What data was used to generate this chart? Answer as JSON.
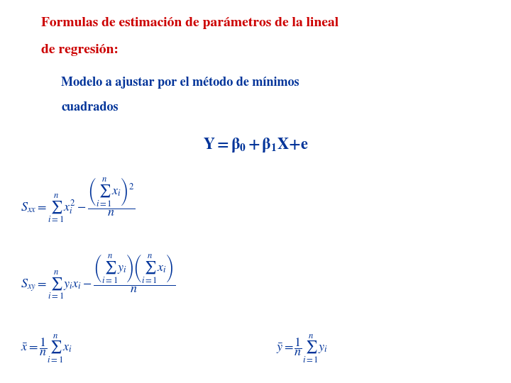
{
  "title_line1": "Formulas de estimación de parámetros de la lineal",
  "title_line2": "de regresión:",
  "subtitle_line1": "Modelo a ajustar por el método de mínimos",
  "subtitle_line2": "cuadrados",
  "title_color": "#cc0000",
  "subtitle_color": "#003399",
  "formula_color": "#003399",
  "bg_color": "#ffffff",
  "fig_width": 7.2,
  "fig_height": 5.4
}
